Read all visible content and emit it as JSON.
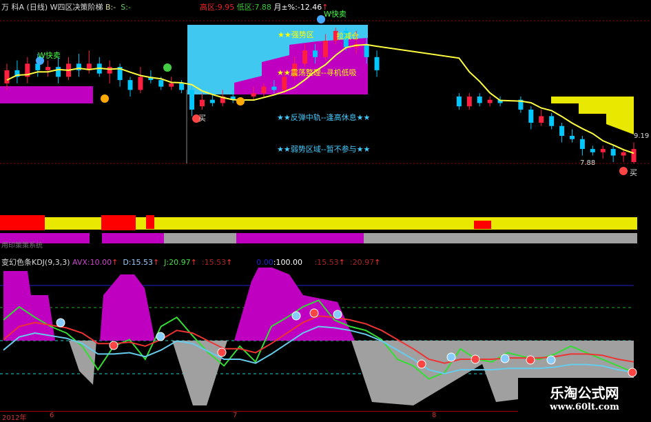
{
  "header": {
    "stock": "万 科A",
    "period": "(日线)",
    "indicator": "W四区决策阶梯",
    "b_label": "B:",
    "b_value": "-",
    "s_label": "S:",
    "s_value": "-",
    "high_label": "高区:",
    "high_value": "9.95",
    "low_label": "低区:",
    "low_value": "7.88",
    "month_label": "月±%:",
    "month_value": "-12.46",
    "arrow": "↑"
  },
  "annotations": {
    "w_fast_sell_1": "W快卖",
    "w_fast_sell_2": "W快卖",
    "buy_1": "买",
    "buy_2": "买",
    "strong_zone": "★★强势区",
    "strong_right": "拉减仓",
    "consolidate": "★★震荡整理--寻机低吸",
    "rebound": "★★反弹中轨--逢高休息★★",
    "weak": "★★弱势区域--暂不参与★★",
    "price_right": "9.19",
    "price_low": "7.88",
    "kuai": "快卖",
    "high_mark": "9.95"
  },
  "strip_label": "用印策策系统",
  "kdj": {
    "title": "变幻色条KDJ(9,3,3)",
    "avx_label": "AVX:",
    "avx": "10.00",
    "d_label": "D:",
    "d": "15.53",
    "j_label": "J:",
    "j": "20.97",
    "v1": ":15.53",
    "v2": "0.00",
    "v3": ":100.00",
    "v4": ":15.53",
    "v5": ":20.97",
    "arrow": "↑"
  },
  "axis": {
    "year": "2012年",
    "m6": "6",
    "m7": "7",
    "m8": "8"
  },
  "watermark": {
    "name": "乐淘公式网",
    "url": "www.60lt.com"
  },
  "colors": {
    "up": "#ff2040",
    "down": "#00c8ff",
    "ma": "#ffff40",
    "box": "#40c8f0",
    "magenta": "#c000c0",
    "yellow": "#e8e800",
    "gray": "#a0a0a0"
  },
  "candles": [
    [
      9.1,
      9.3,
      9.4,
      9.0
    ],
    [
      9.3,
      9.2,
      9.45,
      9.1
    ],
    [
      9.2,
      9.4,
      9.5,
      9.1
    ],
    [
      9.4,
      9.3,
      9.55,
      9.2
    ],
    [
      9.3,
      9.35,
      9.45,
      9.2
    ],
    [
      9.35,
      9.2,
      9.5,
      9.1
    ],
    [
      9.2,
      9.4,
      9.5,
      9.15
    ],
    [
      9.4,
      9.3,
      9.55,
      9.2
    ],
    [
      9.3,
      9.4,
      9.6,
      9.25
    ],
    [
      9.4,
      9.25,
      9.5,
      9.2
    ],
    [
      9.25,
      9.35,
      9.45,
      9.1
    ],
    [
      9.35,
      9.15,
      9.4,
      9.05
    ],
    [
      9.15,
      9.0,
      9.2,
      8.9
    ],
    [
      9.0,
      9.2,
      9.35,
      8.95
    ],
    [
      9.2,
      9.15,
      9.3,
      9.1
    ],
    [
      9.15,
      9.05,
      9.2,
      9.0
    ],
    [
      9.05,
      9.1,
      9.2,
      9.0
    ],
    [
      9.1,
      9.0,
      9.15,
      8.95
    ],
    [
      9.0,
      8.7,
      9.05,
      8.6
    ],
    [
      8.75,
      8.85,
      8.95,
      8.7
    ],
    [
      8.85,
      8.8,
      8.95,
      8.75
    ],
    [
      8.8,
      8.9,
      9.0,
      8.75
    ],
    [
      8.9,
      8.85,
      9.0,
      8.8
    ],
    null,
    [
      8.9,
      8.95,
      9.05,
      8.85
    ],
    [
      8.95,
      9.05,
      9.1,
      8.9
    ],
    [
      9.05,
      9.0,
      9.15,
      8.95
    ],
    [
      9.0,
      9.2,
      9.3,
      8.95
    ],
    [
      9.2,
      9.4,
      9.5,
      9.15
    ],
    [
      9.4,
      9.6,
      9.7,
      9.35
    ],
    [
      9.6,
      9.5,
      9.7,
      9.4
    ],
    [
      9.5,
      9.75,
      9.85,
      9.45
    ],
    [
      9.75,
      9.9,
      9.95,
      9.7
    ],
    [
      9.9,
      9.65,
      9.95,
      9.6
    ],
    [
      9.65,
      9.7,
      9.9,
      9.55
    ],
    [
      9.7,
      9.5,
      9.8,
      9.4
    ],
    [
      9.5,
      9.3,
      9.6,
      9.2
    ],
    null,
    null,
    null,
    null,
    null,
    null,
    null,
    [
      8.9,
      8.75,
      8.95,
      8.7
    ],
    [
      8.75,
      8.9,
      8.95,
      8.7
    ],
    [
      8.9,
      8.8,
      8.95,
      8.75
    ],
    [
      8.8,
      8.85,
      8.9,
      8.75
    ],
    [
      8.85,
      8.8,
      8.9,
      8.75
    ],
    null,
    [
      8.85,
      8.7,
      8.9,
      8.65
    ],
    [
      8.7,
      8.5,
      8.75,
      8.4
    ],
    [
      8.5,
      8.6,
      8.7,
      8.45
    ],
    [
      8.6,
      8.45,
      8.65,
      8.4
    ],
    [
      8.45,
      8.3,
      8.5,
      8.2
    ],
    [
      8.3,
      8.25,
      8.4,
      8.2
    ],
    [
      8.25,
      8.1,
      8.3,
      8.0
    ],
    [
      8.1,
      8.05,
      8.15,
      8.0
    ],
    [
      8.05,
      8.1,
      8.15,
      7.95
    ],
    [
      8.1,
      8.0,
      8.15,
      7.9
    ],
    [
      8.0,
      8.05,
      8.1,
      7.9
    ],
    [
      7.9,
      8.1,
      8.2,
      7.88
    ]
  ],
  "kdj_k": [
    60,
    70,
    62,
    55,
    50,
    40,
    22,
    40,
    45,
    30,
    55,
    62,
    48,
    35,
    25,
    40,
    28,
    55,
    62,
    70,
    75,
    60,
    55,
    52,
    45,
    30,
    25,
    15,
    20,
    38,
    30,
    28,
    35,
    32,
    30,
    34,
    40,
    35,
    30,
    25,
    20
  ],
  "kdj_d": [
    45,
    55,
    58,
    56,
    54,
    50,
    42,
    42,
    43,
    40,
    45,
    52,
    50,
    44,
    38,
    38,
    35,
    42,
    50,
    58,
    63,
    62,
    60,
    57,
    52,
    45,
    38,
    30,
    27,
    30,
    30,
    30,
    31,
    31,
    31,
    32,
    34,
    34,
    33,
    30,
    28
  ]
}
